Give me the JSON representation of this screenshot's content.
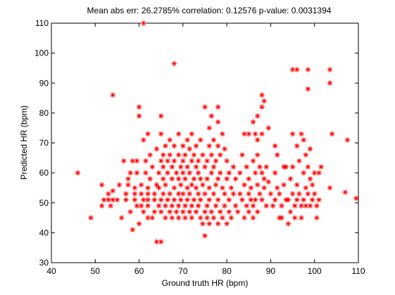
{
  "chart_data": {
    "type": "scatter",
    "title": "Mean abs err: 26.2785% correlation: 0.12576 p-value: 0.0031394",
    "xlabel": "Ground truth HR (bpm)",
    "ylabel": "Predicted HR (bpm)",
    "xlim": [
      40,
      110
    ],
    "ylim": [
      30,
      110
    ],
    "xticks": [
      "40",
      "50",
      "60",
      "70",
      "80",
      "90",
      "100",
      "110"
    ],
    "yticks": [
      "30",
      "40",
      "50",
      "60",
      "70",
      "80",
      "90",
      "100",
      "110"
    ],
    "grid": false,
    "legend": "none",
    "marker": "asterisk",
    "marker_color": "#ff0000",
    "series": [
      {
        "points": [
          [
            46,
            60
          ],
          [
            49,
            45
          ],
          [
            51.5,
            56
          ],
          [
            51.5,
            49
          ],
          [
            52,
            51
          ],
          [
            53,
            53
          ],
          [
            53,
            51
          ],
          [
            53.5,
            49
          ],
          [
            54,
            54
          ],
          [
            54,
            51
          ],
          [
            54,
            86
          ],
          [
            55,
            51
          ],
          [
            55.5,
            56
          ],
          [
            56,
            45
          ],
          [
            56.5,
            64
          ],
          [
            57,
            51
          ],
          [
            57,
            53
          ],
          [
            57.5,
            56
          ],
          [
            57.5,
            58
          ],
          [
            58,
            60
          ],
          [
            58,
            47
          ],
          [
            58.5,
            41
          ],
          [
            58.5,
            64
          ],
          [
            59,
            51
          ],
          [
            59,
            53
          ],
          [
            59,
            55
          ],
          [
            59.5,
            60
          ],
          [
            59.5,
            64
          ],
          [
            59.5,
            49
          ],
          [
            60,
            79
          ],
          [
            60,
            82
          ],
          [
            60,
            43
          ],
          [
            60.5,
            56
          ],
          [
            60.5,
            53
          ],
          [
            60.5,
            49
          ],
          [
            61,
            110
          ],
          [
            61,
            71
          ],
          [
            61,
            51
          ],
          [
            61,
            47
          ],
          [
            61.5,
            60
          ],
          [
            61.5,
            64
          ],
          [
            62,
            73
          ],
          [
            62,
            55
          ],
          [
            62,
            53
          ],
          [
            62,
            51
          ],
          [
            62,
            49
          ],
          [
            62,
            45
          ],
          [
            62.5,
            66
          ],
          [
            62.5,
            58
          ],
          [
            63,
            62
          ],
          [
            63,
            45
          ],
          [
            63.5,
            53
          ],
          [
            63.5,
            51
          ],
          [
            63.5,
            47
          ],
          [
            64,
            37
          ],
          [
            64,
            68
          ],
          [
            64,
            56
          ],
          [
            64.5,
            60
          ],
          [
            64.5,
            55
          ],
          [
            64.5,
            49
          ],
          [
            65,
            37
          ],
          [
            65,
            79
          ],
          [
            65,
            73
          ],
          [
            65,
            64
          ],
          [
            65,
            51
          ],
          [
            65,
            47
          ],
          [
            65.5,
            66
          ],
          [
            65.5,
            62
          ],
          [
            65.5,
            58
          ],
          [
            65.5,
            53
          ],
          [
            66,
            69
          ],
          [
            66,
            56
          ],
          [
            66,
            49
          ],
          [
            66,
            45
          ],
          [
            66.5,
            64
          ],
          [
            66.5,
            60
          ],
          [
            66.5,
            51
          ],
          [
            67,
            71
          ],
          [
            67,
            66
          ],
          [
            67,
            53
          ],
          [
            67,
            47
          ],
          [
            67.5,
            62
          ],
          [
            67.5,
            58
          ],
          [
            67.5,
            49
          ],
          [
            67.5,
            45
          ],
          [
            68,
            96.5
          ],
          [
            68,
            69
          ],
          [
            68,
            64
          ],
          [
            68,
            55
          ],
          [
            68,
            51
          ],
          [
            68.5,
            60
          ],
          [
            68.5,
            47
          ],
          [
            69,
            73
          ],
          [
            69,
            66
          ],
          [
            69,
            58
          ],
          [
            69,
            53
          ],
          [
            69,
            49
          ],
          [
            69,
            45
          ],
          [
            69.5,
            62
          ],
          [
            69.5,
            56
          ],
          [
            69.5,
            51
          ],
          [
            70,
            69
          ],
          [
            70,
            64
          ],
          [
            70,
            60
          ],
          [
            70,
            53
          ],
          [
            70,
            47
          ],
          [
            70.5,
            66
          ],
          [
            70.5,
            58
          ],
          [
            70.5,
            49
          ],
          [
            70.5,
            45
          ],
          [
            71,
            71
          ],
          [
            71,
            62
          ],
          [
            71,
            55
          ],
          [
            71,
            51
          ],
          [
            71.5,
            68
          ],
          [
            71.5,
            60
          ],
          [
            71.5,
            53
          ],
          [
            71.5,
            47
          ],
          [
            72,
            73
          ],
          [
            72,
            64
          ],
          [
            72,
            56
          ],
          [
            72,
            49
          ],
          [
            72,
            45
          ],
          [
            72.5,
            66
          ],
          [
            72.5,
            58
          ],
          [
            72.5,
            51
          ],
          [
            73,
            69
          ],
          [
            73,
            62
          ],
          [
            73,
            55
          ],
          [
            73,
            47
          ],
          [
            73.5,
            64
          ],
          [
            73.5,
            60
          ],
          [
            73.5,
            53
          ],
          [
            73.5,
            49
          ],
          [
            74,
            71
          ],
          [
            74,
            58
          ],
          [
            74,
            51
          ],
          [
            74,
            45
          ],
          [
            74.5,
            66
          ],
          [
            74.5,
            56
          ],
          [
            74.5,
            43
          ],
          [
            75,
            82
          ],
          [
            75,
            62
          ],
          [
            75,
            53
          ],
          [
            75,
            47
          ],
          [
            75,
            39
          ],
          [
            75.5,
            64
          ],
          [
            75.5,
            58
          ],
          [
            75.5,
            49
          ],
          [
            75.5,
            45
          ],
          [
            76,
            75
          ],
          [
            76,
            69
          ],
          [
            76,
            55
          ],
          [
            76,
            51
          ],
          [
            76,
            43
          ],
          [
            76.5,
            79
          ],
          [
            76.5,
            66
          ],
          [
            76.5,
            60
          ],
          [
            76.5,
            47
          ],
          [
            77,
            71
          ],
          [
            77,
            62
          ],
          [
            77,
            53
          ],
          [
            77,
            45
          ],
          [
            77.5,
            64
          ],
          [
            77.5,
            56
          ],
          [
            77.5,
            49
          ],
          [
            78,
            82
          ],
          [
            78,
            77
          ],
          [
            78,
            69
          ],
          [
            78,
            58
          ],
          [
            78,
            51
          ],
          [
            78,
            43
          ],
          [
            78.5,
            66
          ],
          [
            78.5,
            60
          ],
          [
            78.5,
            47
          ],
          [
            79,
            73
          ],
          [
            79,
            55
          ],
          [
            79,
            45
          ],
          [
            79.5,
            68
          ],
          [
            79.5,
            53
          ],
          [
            79.5,
            49
          ],
          [
            80,
            64
          ],
          [
            80,
            58
          ],
          [
            80,
            43
          ],
          [
            80.5,
            60
          ],
          [
            80.5,
            51
          ],
          [
            80.5,
            47
          ],
          [
            81,
            55
          ],
          [
            81,
            45
          ],
          [
            81.5,
            62
          ],
          [
            81.5,
            53
          ],
          [
            82,
            58
          ],
          [
            82,
            49
          ],
          [
            82.5,
            47
          ],
          [
            83,
            60
          ],
          [
            83,
            53
          ],
          [
            83.5,
            66
          ],
          [
            83.5,
            51
          ],
          [
            84,
            73
          ],
          [
            84,
            56
          ],
          [
            84,
            45
          ],
          [
            84.5,
            62
          ],
          [
            84.5,
            49
          ],
          [
            85,
            73
          ],
          [
            85,
            58
          ],
          [
            85,
            53
          ],
          [
            85,
            47
          ],
          [
            85.5,
            55
          ],
          [
            85.5,
            51
          ],
          [
            86,
            77
          ],
          [
            86,
            64
          ],
          [
            86,
            49
          ],
          [
            86,
            45
          ],
          [
            86.5,
            73
          ],
          [
            86.5,
            60
          ],
          [
            86.5,
            51
          ],
          [
            87,
            79
          ],
          [
            87,
            71
          ],
          [
            87,
            66
          ],
          [
            87,
            56
          ],
          [
            87,
            47
          ],
          [
            87.5,
            62
          ],
          [
            87.5,
            53
          ],
          [
            88,
            86
          ],
          [
            88,
            82
          ],
          [
            88,
            73
          ],
          [
            88,
            60
          ],
          [
            88,
            51
          ],
          [
            88.5,
            84
          ],
          [
            88.5,
            58
          ],
          [
            88.5,
            55
          ],
          [
            89,
            49
          ],
          [
            89,
            62
          ],
          [
            89.5,
            75
          ],
          [
            89.5,
            57
          ],
          [
            90,
            53
          ],
          [
            90.5,
            49
          ],
          [
            91,
            69
          ],
          [
            91,
            60
          ],
          [
            91,
            51
          ],
          [
            91.5,
            66
          ],
          [
            91.5,
            55
          ],
          [
            92,
            45
          ],
          [
            92,
            53
          ],
          [
            92.5,
            49
          ],
          [
            92.5,
            45
          ],
          [
            93,
            62
          ],
          [
            93,
            56
          ],
          [
            93.5,
            62
          ],
          [
            93.5,
            51
          ],
          [
            94,
            51
          ],
          [
            94,
            43
          ],
          [
            94.5,
            58
          ],
          [
            94.5,
            47
          ],
          [
            95,
            94.5
          ],
          [
            95,
            73
          ],
          [
            95,
            62
          ],
          [
            95,
            53
          ],
          [
            95.5,
            49
          ],
          [
            95.5,
            45
          ],
          [
            96,
            94.5
          ],
          [
            96,
            69
          ],
          [
            96,
            56
          ],
          [
            96,
            51
          ],
          [
            96.5,
            64
          ],
          [
            96.5,
            53
          ],
          [
            97,
            73
          ],
          [
            97,
            49
          ],
          [
            97,
            45
          ],
          [
            97.5,
            71
          ],
          [
            97.5,
            60
          ],
          [
            97.5,
            51
          ],
          [
            98,
            66
          ],
          [
            98,
            55
          ],
          [
            98,
            49
          ],
          [
            98.5,
            94.5
          ],
          [
            98.5,
            88
          ],
          [
            98.5,
            62
          ],
          [
            98.5,
            53
          ],
          [
            99,
            68
          ],
          [
            99,
            58
          ],
          [
            99,
            49
          ],
          [
            99.5,
            56
          ],
          [
            99.5,
            51
          ],
          [
            100,
            60
          ],
          [
            100,
            53
          ],
          [
            100.5,
            49
          ],
          [
            100.5,
            45
          ],
          [
            101,
            60
          ],
          [
            101,
            51
          ],
          [
            101.5,
            62
          ],
          [
            103.5,
            94.5
          ],
          [
            103.5,
            90
          ],
          [
            103.5,
            55
          ],
          [
            104,
            73
          ],
          [
            107,
            53.5
          ],
          [
            107.5,
            71
          ],
          [
            109.5,
            51.5
          ]
        ]
      }
    ]
  }
}
